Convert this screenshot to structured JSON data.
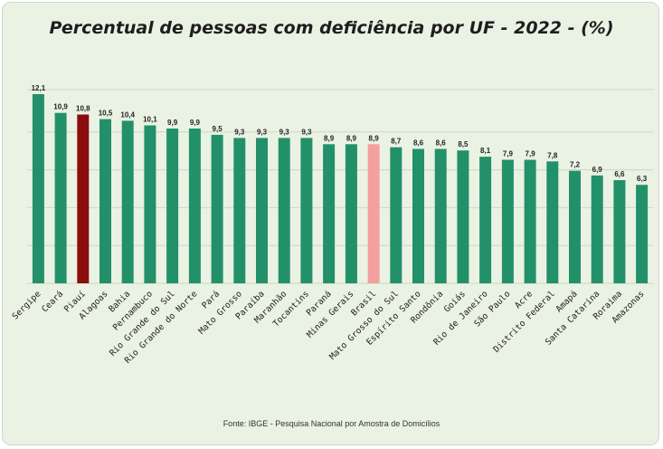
{
  "colors": {
    "bar_default": "#22916a",
    "bar_highlight": "#8b0d0d",
    "bar_country": "#f4a0a0",
    "grid": "#cdd6c7",
    "background": "#eaf2e3"
  },
  "chart_data": {
    "type": "bar",
    "title": "Percentual de pessoas com deficiência por UF - 2022 - (%)",
    "source": "Fonte: IBGE -  Pesquisa Nacional por Amostra de Domicílios",
    "xlabel": "",
    "ylabel": "",
    "ylim": [
      0,
      12.1
    ],
    "grid": true,
    "categories": [
      "Sergipe",
      "Ceará",
      "Piauí",
      "Alagoas",
      "Bahia",
      "Pernambuco",
      "Rio Grande do Sul",
      "Rio Grande do Norte",
      "Pará",
      "Mato Grosso",
      "Paraíba",
      "Maranhão",
      "Tocantins",
      "Paraná",
      "Minas Gerais",
      "Brasil",
      "Mato Grosso do Sul",
      "Espírito Santo",
      "Rondônia",
      "Goiás",
      "Rio de Janeiro",
      "São Paulo",
      "Acre",
      "Distrito Federal",
      "Amapá",
      "Santa Catarina",
      "Roraima",
      "Amazonas"
    ],
    "values": [
      12.1,
      10.9,
      10.8,
      10.5,
      10.4,
      10.1,
      9.9,
      9.9,
      9.5,
      9.3,
      9.3,
      9.3,
      9.3,
      8.9,
      8.9,
      8.9,
      8.7,
      8.6,
      8.6,
      8.5,
      8.1,
      7.9,
      7.9,
      7.8,
      7.2,
      6.9,
      6.6,
      6.3
    ],
    "value_labels": [
      "12,1",
      "10,9",
      "10,8",
      "10,5",
      "10,4",
      "10,1",
      "9,9",
      "9,9",
      "9,5",
      "9,3",
      "9,3",
      "9,3",
      "9,3",
      "8,9",
      "8,9",
      "8,9",
      "8,7",
      "8,6",
      "8,6",
      "8,5",
      "8,1",
      "7,9",
      "7,9",
      "7,8",
      "7,2",
      "6,9",
      "6,6",
      "6,3"
    ],
    "highlight": {
      "Piauí": "bar_highlight",
      "Brasil": "bar_country"
    }
  }
}
